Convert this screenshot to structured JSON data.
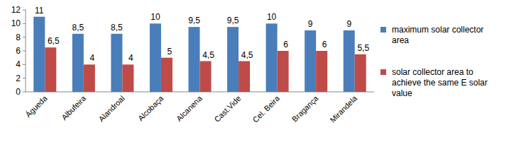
{
  "chart_data": {
    "type": "bar",
    "categories": [
      "Águeda",
      "Albufeira",
      "Alandroal",
      "Alcobaça",
      "Alcanena",
      "Cast.Vide",
      "Cel. Beira",
      "Bragança",
      "Mirandela"
    ],
    "series": [
      {
        "name": "maximum solar collector area",
        "color": "#4a7ebb",
        "values": [
          11,
          8.5,
          8.5,
          10,
          9.5,
          9.5,
          10,
          9,
          9
        ],
        "value_labels": [
          "11",
          "8,5",
          "8,5",
          "10",
          "9,5",
          "9,5",
          "10",
          "9",
          "9"
        ]
      },
      {
        "name": "solar collector area to achieve the same E solar value",
        "color": "#be4b48",
        "values": [
          6.5,
          4,
          4,
          5,
          4.5,
          4.5,
          6,
          6,
          5.5
        ],
        "value_labels": [
          "6,5",
          "4",
          "4",
          "5",
          "4,5",
          "4,5",
          "6",
          "6",
          "5,5"
        ]
      }
    ],
    "ylim": [
      0,
      12
    ],
    "yticks": [
      0,
      2,
      4,
      6,
      8,
      10,
      12
    ],
    "grid": false,
    "legend": "right",
    "data_labels": true
  }
}
